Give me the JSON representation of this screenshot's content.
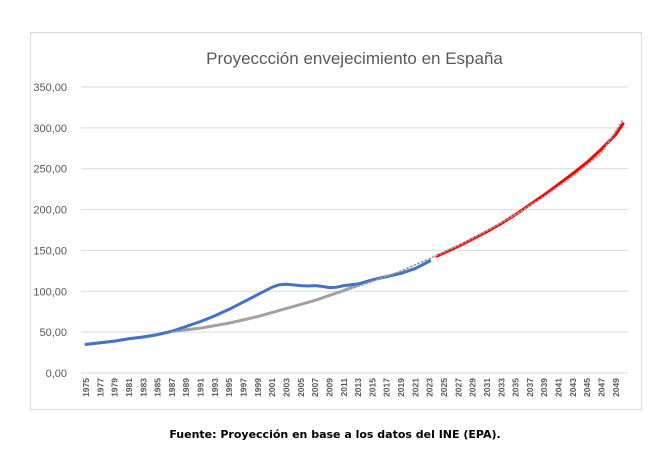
{
  "caption": "Fuente: Proyección en base a los datos del INE (EPA).",
  "chart_data": {
    "type": "line",
    "title": "Proyeccción envejecimiento en España",
    "xlabel": "",
    "ylabel": "",
    "ylim": [
      0,
      350
    ],
    "yticks": [
      "0,00",
      "50,00",
      "100,00",
      "150,00",
      "200,00",
      "250,00",
      "300,00",
      "350,00"
    ],
    "grid": true,
    "legend": "none",
    "xtick_labels": [
      "1975",
      "1977",
      "1979",
      "1981",
      "1983",
      "1985",
      "1987",
      "1989",
      "1991",
      "1993",
      "1995",
      "1997",
      "1999",
      "2001",
      "2003",
      "2005",
      "2007",
      "2009",
      "2011",
      "2013",
      "2015",
      "2017",
      "2019",
      "2021",
      "2023",
      "2025",
      "2027",
      "2029",
      "2031",
      "2033",
      "2035",
      "2037",
      "2039",
      "2041",
      "2043",
      "2045",
      "2047",
      "2049"
    ],
    "series": [
      {
        "color": "#4472c4",
        "style": "solid",
        "points": [
          [
            1975,
            35
          ],
          [
            1977,
            37
          ],
          [
            1979,
            39
          ],
          [
            1981,
            42
          ],
          [
            1983,
            44
          ],
          [
            1985,
            47
          ],
          [
            1987,
            51
          ],
          [
            1989,
            57
          ],
          [
            1991,
            63
          ],
          [
            1993,
            70
          ],
          [
            1995,
            78
          ],
          [
            1997,
            87
          ],
          [
            1999,
            96
          ],
          [
            2001,
            105
          ],
          [
            2002,
            108
          ],
          [
            2003,
            108.5
          ],
          [
            2005,
            107
          ],
          [
            2006,
            106.5
          ],
          [
            2007,
            107
          ],
          [
            2008,
            106
          ],
          [
            2009,
            104.5
          ],
          [
            2010,
            105
          ],
          [
            2011,
            107
          ],
          [
            2013,
            109
          ],
          [
            2015,
            114
          ],
          [
            2017,
            118
          ],
          [
            2019,
            122
          ],
          [
            2021,
            128
          ],
          [
            2023,
            137
          ]
        ]
      },
      {
        "color": "#a5a5a5",
        "style": "solid",
        "points": [
          [
            1975,
            35
          ],
          [
            1977,
            37
          ],
          [
            1979,
            39
          ],
          [
            1981,
            42
          ],
          [
            1983,
            44
          ],
          [
            1985,
            47
          ],
          [
            1987,
            51
          ],
          [
            1989,
            53
          ],
          [
            1991,
            55
          ],
          [
            1993,
            58
          ],
          [
            1995,
            61
          ],
          [
            1997,
            65
          ],
          [
            1999,
            69
          ],
          [
            2001,
            74
          ],
          [
            2003,
            79
          ],
          [
            2005,
            84
          ],
          [
            2007,
            89
          ],
          [
            2009,
            95
          ],
          [
            2011,
            101
          ],
          [
            2013,
            108
          ],
          [
            2015,
            114
          ],
          [
            2017,
            118
          ],
          [
            2019,
            122
          ],
          [
            2021,
            128
          ],
          [
            2023,
            137
          ]
        ]
      },
      {
        "color": "#ff0000",
        "style": "solid",
        "points": [
          [
            2024,
            143
          ],
          [
            2025,
            147
          ],
          [
            2027,
            155
          ],
          [
            2029,
            164
          ],
          [
            2031,
            173
          ],
          [
            2033,
            183
          ],
          [
            2035,
            194
          ],
          [
            2037,
            206
          ],
          [
            2039,
            218
          ],
          [
            2041,
            231
          ],
          [
            2043,
            244
          ],
          [
            2045,
            258
          ],
          [
            2047,
            274
          ],
          [
            2049,
            292
          ],
          [
            2050,
            305
          ]
        ]
      },
      {
        "color": "#9e9e9e",
        "style": "dotted",
        "points": [
          [
            1987,
            50
          ],
          [
            1991,
            55
          ],
          [
            1995,
            62
          ],
          [
            1999,
            70
          ],
          [
            2003,
            79
          ],
          [
            2007,
            89
          ],
          [
            2011,
            100
          ],
          [
            2015,
            112
          ],
          [
            2019,
            125
          ],
          [
            2023,
            140
          ],
          [
            2027,
            156
          ],
          [
            2031,
            174
          ],
          [
            2035,
            194
          ],
          [
            2039,
            216
          ],
          [
            2043,
            241
          ],
          [
            2047,
            269
          ],
          [
            2050,
            310
          ]
        ]
      }
    ]
  }
}
